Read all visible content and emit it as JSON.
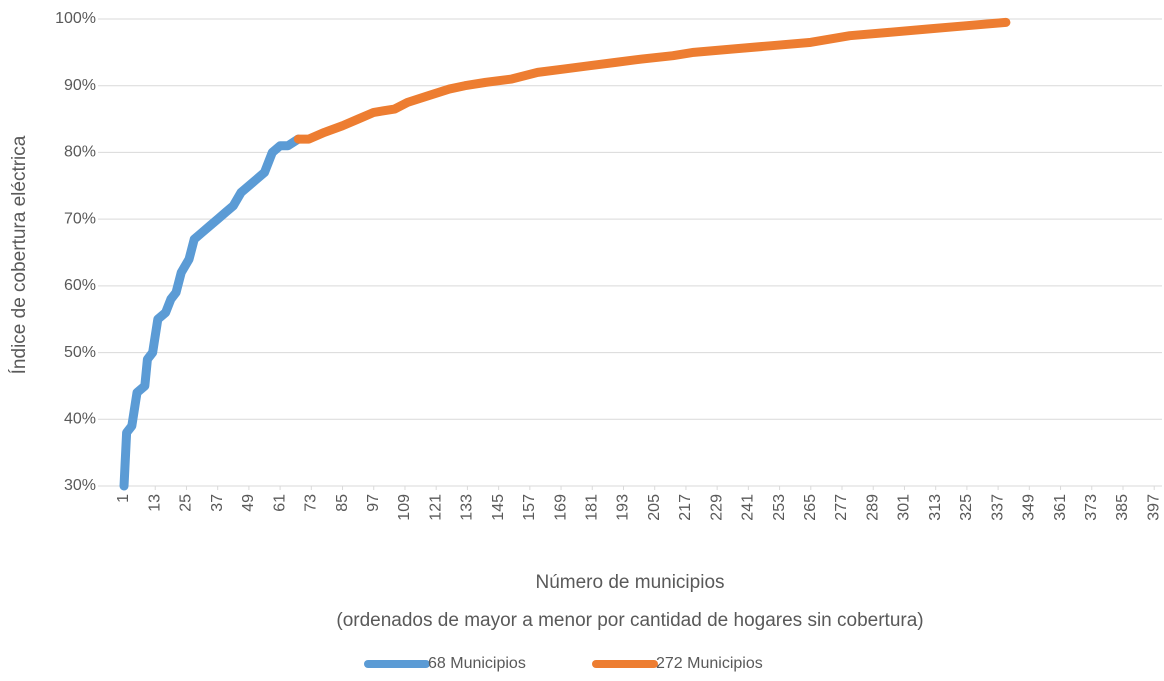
{
  "chart_data": {
    "type": "line",
    "xlabel": "Número de municipios",
    "xlabel2": "(ordenados de mayor a menor por cantidad de hogares sin cobertura)",
    "ylabel": "Índice de cobertura eléctrica",
    "x": [
      1,
      2,
      4,
      6,
      9,
      10,
      12,
      14,
      17,
      19,
      21,
      23,
      26,
      28,
      31,
      34,
      37,
      40,
      43,
      46,
      49,
      52,
      55,
      58,
      61,
      64,
      68,
      72,
      78,
      85,
      91,
      97,
      105,
      110,
      118,
      126,
      132,
      140,
      150,
      160,
      170,
      180,
      190,
      200,
      212,
      220,
      235,
      250,
      265,
      280,
      295,
      310,
      325,
      340
    ],
    "series": [
      {
        "name": "68 Municipios",
        "color": "#5b9bd5",
        "values": [
          30,
          38,
          39,
          44,
          45,
          49,
          50,
          55,
          56,
          58,
          59,
          62,
          64,
          67,
          68,
          69,
          70,
          71,
          72,
          74,
          75,
          76,
          77,
          80,
          81,
          81,
          82,
          null,
          null,
          null,
          null,
          null,
          null,
          null,
          null,
          null,
          null,
          null,
          null,
          null,
          null,
          null,
          null,
          null,
          null,
          null,
          null,
          null,
          null,
          null,
          null,
          null,
          null,
          null
        ]
      },
      {
        "name": "272 Municipios",
        "color": "#ed7d31",
        "values": [
          null,
          null,
          null,
          null,
          null,
          null,
          null,
          null,
          null,
          null,
          null,
          null,
          null,
          null,
          null,
          null,
          null,
          null,
          null,
          null,
          null,
          null,
          null,
          null,
          null,
          null,
          82,
          82,
          83,
          84,
          85,
          86,
          86.5,
          87.5,
          88.5,
          89.5,
          90,
          90.5,
          91,
          92,
          92.5,
          93,
          93.5,
          94,
          94.5,
          95,
          95.5,
          96,
          96.5,
          97.5,
          98,
          98.5,
          99,
          99.5
        ]
      }
    ],
    "xlim": [
      -9,
      400
    ],
    "xticks": [
      1,
      13,
      25,
      37,
      49,
      61,
      73,
      85,
      97,
      109,
      121,
      133,
      145,
      157,
      169,
      181,
      193,
      205,
      217,
      229,
      241,
      253,
      265,
      277,
      289,
      301,
      313,
      325,
      337,
      349,
      361,
      373,
      385,
      397
    ],
    "ylim": [
      30,
      100
    ],
    "yticks": [
      {
        "value": 30,
        "label": "30%"
      },
      {
        "value": 40,
        "label": "40%"
      },
      {
        "value": 50,
        "label": "50%"
      },
      {
        "value": 60,
        "label": "60%"
      },
      {
        "value": 70,
        "label": "70%"
      },
      {
        "value": 80,
        "label": "80%"
      },
      {
        "value": 90,
        "label": "90%"
      },
      {
        "value": 100,
        "label": "100%"
      }
    ],
    "grid": true,
    "legend": "bottom"
  }
}
